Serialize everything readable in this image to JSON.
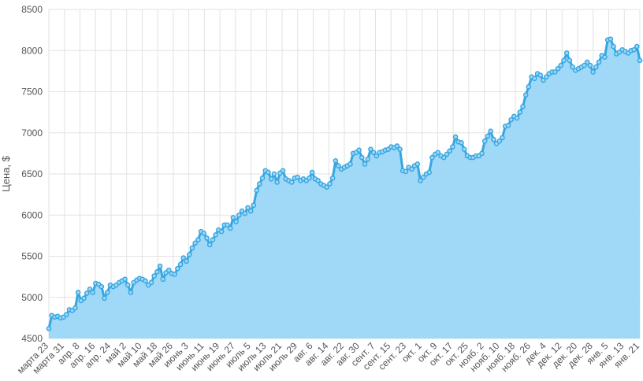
{
  "chart_data": {
    "type": "area",
    "title": "",
    "xlabel": "",
    "ylabel": "Цена, $",
    "ylim": [
      4500,
      8500
    ],
    "yticks": [
      4500,
      5000,
      5500,
      6000,
      6500,
      7000,
      7500,
      8000,
      8500
    ],
    "grid": true,
    "legend": "none",
    "colors": {
      "line": "#36a6e0",
      "fill": "#9bd6f7",
      "grid": "#e2e2e2",
      "text": "#555555"
    },
    "x_tick_labels": [
      "марта 23",
      "марта 31",
      "апр. 8",
      "апр. 16",
      "апр. 24",
      "май 2",
      "май 10",
      "май 18",
      "май 26",
      "июнь 3",
      "июнь 11",
      "июнь 19",
      "июнь 27",
      "июль 5",
      "июль 13",
      "июль 21",
      "июль 29",
      "авг. 6",
      "авг. 14",
      "авг. 22",
      "авг. 30",
      "сент. 7",
      "сент. 15",
      "сент. 23",
      "окт. 1",
      "окт. 9",
      "окт. 17",
      "окт. 25",
      "нояб. 2",
      "нояб. 10",
      "нояб. 18",
      "нояб. 26",
      "дек. 4",
      "дек. 12",
      "дек. 20",
      "дек. 28",
      "янв. 5",
      "янв. 13",
      "янв. 21"
    ],
    "tick_step_days": 8,
    "x_start_label": "марта 23",
    "y": [
      4620,
      4780,
      4760,
      4770,
      4750,
      4760,
      4790,
      4850,
      4840,
      4870,
      5060,
      4960,
      4990,
      5050,
      5100,
      5060,
      5170,
      5160,
      5130,
      4990,
      5060,
      5150,
      5130,
      5150,
      5180,
      5200,
      5220,
      5150,
      5060,
      5180,
      5210,
      5230,
      5220,
      5200,
      5150,
      5180,
      5260,
      5310,
      5380,
      5220,
      5300,
      5330,
      5290,
      5280,
      5350,
      5400,
      5480,
      5440,
      5520,
      5600,
      5660,
      5700,
      5800,
      5780,
      5720,
      5640,
      5700,
      5760,
      5820,
      5800,
      5880,
      5880,
      5840,
      5970,
      5920,
      6000,
      6050,
      6020,
      6090,
      6050,
      6120,
      6300,
      6380,
      6450,
      6540,
      6520,
      6440,
      6500,
      6400,
      6510,
      6540,
      6440,
      6420,
      6400,
      6450,
      6460,
      6420,
      6440,
      6420,
      6450,
      6520,
      6440,
      6420,
      6380,
      6360,
      6340,
      6380,
      6450,
      6660,
      6600,
      6560,
      6580,
      6600,
      6620,
      6750,
      6760,
      6790,
      6700,
      6620,
      6680,
      6800,
      6760,
      6720,
      6760,
      6770,
      6790,
      6800,
      6830,
      6820,
      6840,
      6800,
      6540,
      6530,
      6580,
      6560,
      6600,
      6620,
      6420,
      6460,
      6500,
      6520,
      6700,
      6740,
      6760,
      6720,
      6700,
      6740,
      6780,
      6830,
      6950,
      6890,
      6880,
      6800,
      6720,
      6700,
      6700,
      6720,
      6720,
      6750,
      6900,
      6960,
      7020,
      6920,
      6870,
      6900,
      6940,
      7080,
      7090,
      7160,
      7200,
      7180,
      7250,
      7320,
      7460,
      7560,
      7680,
      7660,
      7720,
      7700,
      7640,
      7680,
      7720,
      7740,
      7740,
      7780,
      7820,
      7880,
      7970,
      7880,
      7800,
      7760,
      7780,
      7800,
      7820,
      7860,
      7820,
      7740,
      7800,
      7860,
      7940,
      7920,
      8130,
      8140,
      8050,
      7960,
      7980,
      8010,
      7990,
      7970,
      8000,
      8010,
      8050,
      7880
    ]
  }
}
